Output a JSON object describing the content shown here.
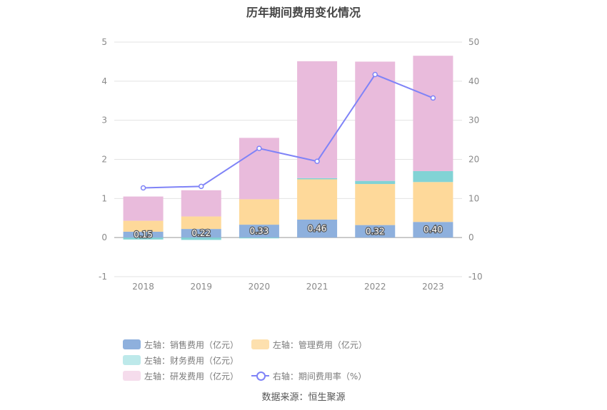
{
  "title": "历年期间费用变化情况",
  "source": "数据来源：恒生聚源",
  "legend": [
    {
      "label": "左轴：销售费用（亿元）",
      "color": "#8fb0dc",
      "kind": "bar"
    },
    {
      "label": "左轴：管理费用（亿元）",
      "color": "#fde0ae",
      "kind": "bar"
    },
    {
      "label": "左轴：财务费用（亿元）",
      "color": "#bde9ea",
      "kind": "bar"
    },
    {
      "label": "左轴：研发费用（亿元）",
      "color": "#f5dcec",
      "kind": "bar"
    },
    {
      "label": "右轴：期间费用率（%）",
      "color": "#7f83f7",
      "kind": "line"
    }
  ],
  "chart_data": {
    "type": "bar",
    "stacked": true,
    "categories": [
      "2018",
      "2019",
      "2020",
      "2021",
      "2022",
      "2023"
    ],
    "left_axis": {
      "ylim": [
        -1,
        5
      ],
      "ticks": [
        -1,
        0,
        1,
        2,
        3,
        4,
        5
      ]
    },
    "right_axis": {
      "ylim": [
        -10,
        50
      ],
      "ticks": [
        -10,
        0,
        10,
        20,
        30,
        40,
        50
      ]
    },
    "series": [
      {
        "name": "左轴：销售费用（亿元）",
        "axis": "left",
        "color": "#8eb0dd",
        "values": [
          0.15,
          0.22,
          0.33,
          0.46,
          0.32,
          0.4
        ],
        "data_labels": [
          "0.15",
          "0.22",
          "0.33",
          "0.46",
          "0.32",
          "0.40"
        ]
      },
      {
        "name": "左轴：管理费用（亿元）",
        "axis": "left",
        "color": "#fed99a",
        "values": [
          0.28,
          0.32,
          0.65,
          1.03,
          1.05,
          1.02
        ]
      },
      {
        "name": "左轴：财务费用（亿元）",
        "axis": "left",
        "color": "#82d3d5",
        "values": [
          -0.05,
          -0.06,
          -0.02,
          0.03,
          0.08,
          0.28
        ]
      },
      {
        "name": "左轴：研发费用（亿元）",
        "axis": "left",
        "color": "#e9bbdc",
        "values": [
          0.62,
          0.67,
          1.57,
          2.99,
          3.05,
          2.95
        ]
      },
      {
        "name": "右轴：期间费用率（%）",
        "axis": "right",
        "type": "line",
        "color": "#7f83f7",
        "values": [
          12.7,
          13.1,
          22.8,
          19.5,
          41.7,
          35.7
        ]
      }
    ],
    "grid": true,
    "legend_position": "bottom"
  }
}
